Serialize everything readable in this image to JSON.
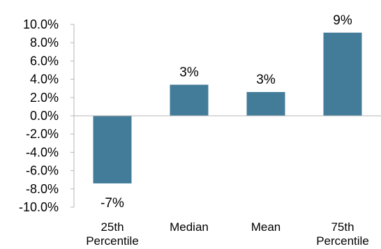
{
  "chart_data": {
    "type": "bar",
    "categories": [
      [
        "25th",
        "Percentile"
      ],
      [
        "Median"
      ],
      [
        "Mean"
      ],
      [
        "75th",
        "Percentile"
      ]
    ],
    "values": [
      -7.4,
      3.4,
      2.6,
      9.1
    ],
    "data_labels": [
      "-7%",
      "3%",
      "3%",
      "9%"
    ],
    "y_ticks": [
      "10.0%",
      "8.0%",
      "6.0%",
      "4.0%",
      "2.0%",
      "0.0%",
      "-2.0%",
      "-4.0%",
      "-6.0%",
      "-8.0%",
      "-10.0%"
    ],
    "ylim": [
      -10,
      10
    ],
    "grid": false,
    "legend": "none",
    "bar_color": "#437c99",
    "axis_color": "#b5b5b5"
  }
}
